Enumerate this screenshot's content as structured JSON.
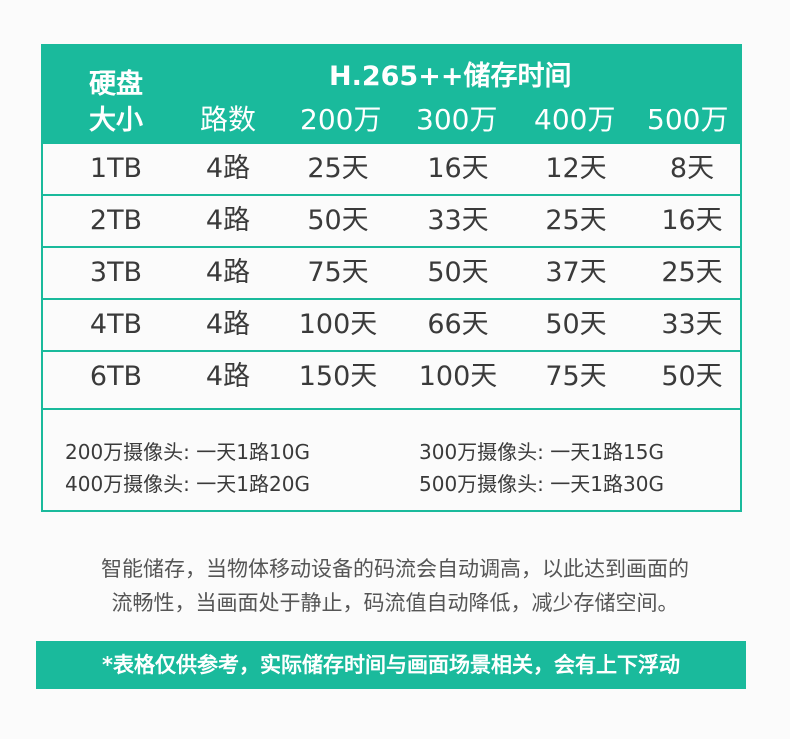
{
  "colors": {
    "accent": "#1aba9c",
    "text": "#3a3a3a"
  },
  "header": {
    "col0_line1": "硬盘",
    "col0_line2": "大小",
    "group_title": "H.265++储存时间",
    "col1": "路数",
    "col2": "200万",
    "col3": "300万",
    "col4": "400万",
    "col5": "500万"
  },
  "rows": [
    [
      "1TB",
      "4路",
      "25天",
      "16天",
      "12天",
      "8天"
    ],
    [
      "2TB",
      "4路",
      "50天",
      "33天",
      "25天",
      "16天"
    ],
    [
      "3TB",
      "4路",
      "75天",
      "50天",
      "37天",
      "25天"
    ],
    [
      "4TB",
      "4路",
      "100天",
      "66天",
      "50天",
      "33天"
    ],
    [
      "6TB",
      "4路",
      "150天",
      "100天",
      "75天",
      "50天"
    ]
  ],
  "notes": {
    "n1": "200万摄像头: 一天1路10G",
    "n2": "300万摄像头: 一天1路15G",
    "n3": "400万摄像头: 一天1路20G",
    "n4": "500万摄像头: 一天1路30G"
  },
  "description": {
    "line1": "智能储存，当物体移动设备的码流会自动调高，以此达到画面的",
    "line2": "流畅性，当画面处于静止，码流值自动降低，减少存储空间。"
  },
  "disclaimer": "*表格仅供参考，实际储存时间与画面场景相关，会有上下浮动"
}
